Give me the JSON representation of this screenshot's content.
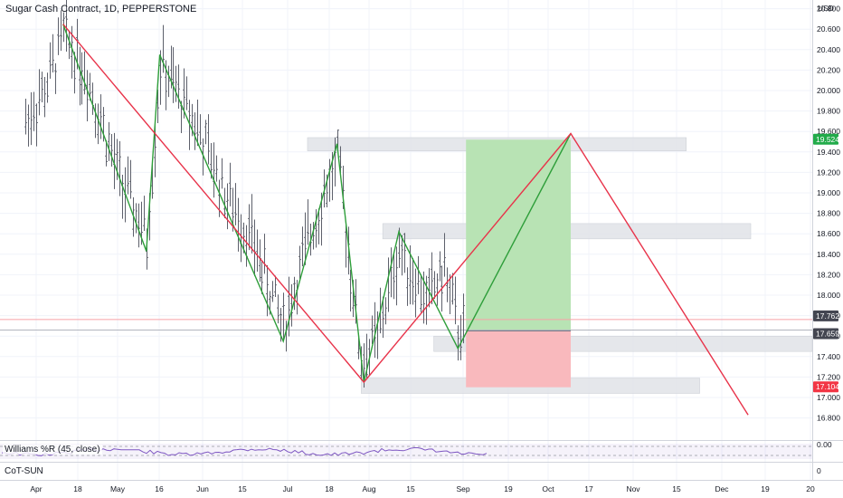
{
  "header": {
    "symbol_title": "Sugar Cash Contract, 1D, PEPPERSTONE",
    "currency": "USD"
  },
  "indicators": {
    "williams_label": "Williams %R (45, close)",
    "cot_label": "CoT-SUN",
    "williams_axis_label": "0.00",
    "cot_axis_label": "0"
  },
  "colors": {
    "red_line": "#e8334a",
    "green_line": "#2e9e3a",
    "profit_zone": "#b8e3b4",
    "loss_zone": "#f9b9bd",
    "sr_zone": "#e0e3e8",
    "bars": "#5d606b",
    "williams_line": "#7e57c2",
    "green_badge": "#22ab4a",
    "red_badge": "#f23645",
    "dark_badge": "#434651"
  },
  "chart_data": {
    "type": "ohlc",
    "y_range": [
      16.8,
      20.95
    ],
    "y_ticks": [
      "20.800",
      "20.600",
      "20.400",
      "20.200",
      "20.000",
      "19.800",
      "19.600",
      "19.400",
      "19.200",
      "19.000",
      "18.800",
      "18.600",
      "18.400",
      "18.200",
      "18.000",
      "17.800",
      "17.600",
      "17.400",
      "17.200",
      "17.000",
      "16.800"
    ],
    "x_ticks": [
      "Apr",
      "18",
      "May",
      "16",
      "Jun",
      "15",
      "Jul",
      "18",
      "Aug",
      "15",
      "Sep",
      "19",
      "Oct",
      "17",
      "Nov",
      "15",
      "Dec",
      "19",
      "20"
    ],
    "price_badges": [
      {
        "label": "19.524",
        "value": 19.524,
        "color": "green"
      },
      {
        "label": "17.762",
        "value": 17.762,
        "color": "dark"
      },
      {
        "label": "17.659",
        "value": 17.659,
        "color": "dark"
      },
      {
        "label": "17.104",
        "value": 17.104,
        "color": "red"
      }
    ],
    "red_path": [
      {
        "date": "Apr 11",
        "price": 20.65
      },
      {
        "date": "Aug 1",
        "price": 17.15
      },
      {
        "date": "Oct 17",
        "price": 19.58
      },
      {
        "date": "Dec 22",
        "price": 16.83
      }
    ],
    "green_path": [
      {
        "date": "Apr 11",
        "price": 20.65
      },
      {
        "date": "May 12",
        "price": 18.43
      },
      {
        "date": "May 17",
        "price": 20.35
      },
      {
        "date": "Jul 2",
        "price": 17.55
      },
      {
        "date": "Jul 22",
        "price": 19.48
      },
      {
        "date": "Aug 1",
        "price": 17.15
      },
      {
        "date": "Aug 14",
        "price": 18.62
      },
      {
        "date": "Sep 5",
        "price": 17.48
      },
      {
        "date": "Oct 17",
        "price": 19.58
      }
    ],
    "position": {
      "type": "long",
      "entry": 17.65,
      "target": 19.52,
      "stop": 17.1,
      "start_date": "Sep 8",
      "end_date": "Oct 17"
    },
    "zones": [
      {
        "low": 19.41,
        "high": 19.54,
        "from": "Jul 11",
        "to": "Nov 29"
      },
      {
        "low": 18.55,
        "high": 18.7,
        "from": "Aug 8",
        "to": "Dec 23"
      },
      {
        "low": 17.45,
        "high": 17.6,
        "from": "Aug 27",
        "to": "end"
      },
      {
        "low": 17.04,
        "high": 17.19,
        "from": "Jul 31",
        "to": "Dec 4"
      }
    ]
  }
}
